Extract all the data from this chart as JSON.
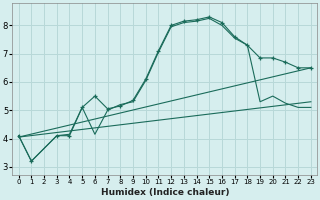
{
  "xlabel": "Humidex (Indice chaleur)",
  "bg_color": "#d6eeee",
  "grid_color": "#b8d8d8",
  "line_color": "#1a6b5a",
  "xlim": [
    -0.5,
    23.5
  ],
  "ylim": [
    2.7,
    8.8
  ],
  "yticks": [
    3,
    4,
    5,
    6,
    7,
    8
  ],
  "xticks": [
    0,
    1,
    2,
    3,
    4,
    5,
    6,
    7,
    8,
    9,
    10,
    11,
    12,
    13,
    14,
    15,
    16,
    17,
    18,
    19,
    20,
    21,
    22,
    23
  ],
  "line1_x": [
    0,
    1,
    3,
    4,
    5,
    6,
    7,
    8,
    9,
    10,
    11,
    12,
    13,
    14,
    15,
    16,
    17,
    18,
    19,
    20,
    21,
    22,
    23
  ],
  "line1_y": [
    4.1,
    3.2,
    4.1,
    4.1,
    5.1,
    5.5,
    5.05,
    5.15,
    5.35,
    6.1,
    7.1,
    8.0,
    8.15,
    8.2,
    8.3,
    8.1,
    7.6,
    7.3,
    6.85,
    6.85,
    6.7,
    6.5,
    6.5
  ],
  "line2_x": [
    0,
    1,
    3,
    4,
    5,
    6,
    7,
    8,
    9,
    10,
    11,
    12,
    13,
    14,
    15,
    16,
    17,
    18,
    19,
    20,
    21,
    22,
    23
  ],
  "line2_y": [
    4.1,
    3.2,
    4.1,
    4.15,
    5.1,
    4.15,
    5.0,
    5.2,
    5.3,
    6.05,
    7.05,
    7.95,
    8.1,
    8.15,
    8.25,
    8.0,
    7.55,
    7.3,
    5.3,
    5.5,
    5.25,
    5.1,
    5.1
  ],
  "line3_x": [
    0,
    23
  ],
  "line3_y": [
    4.05,
    6.5
  ],
  "line4_x": [
    0,
    23
  ],
  "line4_y": [
    4.05,
    5.3
  ]
}
